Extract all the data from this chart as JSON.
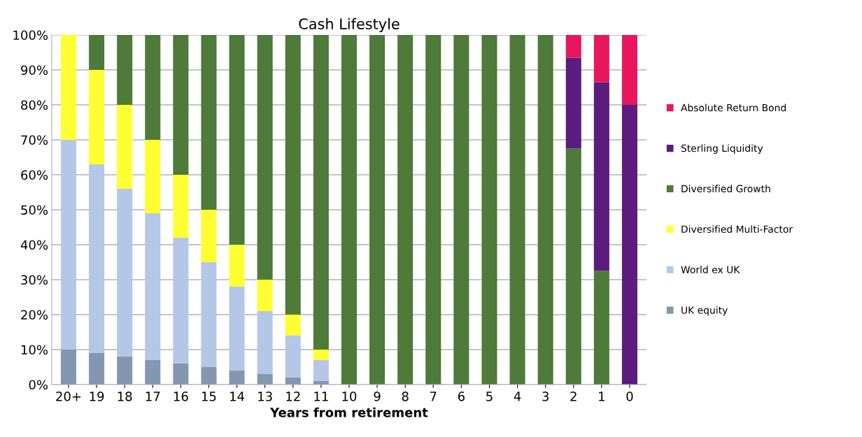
{
  "chart_data": {
    "type": "bar",
    "title": "Cash Lifestyle",
    "xlabel": "Years from retirement",
    "categories": [
      "20+",
      "19",
      "18",
      "17",
      "16",
      "15",
      "14",
      "13",
      "12",
      "11",
      "10",
      "9",
      "8",
      "7",
      "6",
      "5",
      "4",
      "3",
      "2",
      "1",
      "0"
    ],
    "stacked": true,
    "ylim": [
      0,
      100
    ],
    "yticks": [
      {
        "value": 0,
        "label": "0%"
      },
      {
        "value": 10,
        "label": "10%"
      },
      {
        "value": 20,
        "label": "20%"
      },
      {
        "value": 30,
        "label": "30%"
      },
      {
        "value": 40,
        "label": "40%"
      },
      {
        "value": 50,
        "label": "50%"
      },
      {
        "value": 60,
        "label": "60%"
      },
      {
        "value": 70,
        "label": "70%"
      },
      {
        "value": 80,
        "label": "80%"
      },
      {
        "value": 90,
        "label": "90%"
      },
      {
        "value": 100,
        "label": "100%"
      }
    ],
    "grid": "y",
    "legend": "right",
    "series": [
      {
        "name": "UK equity",
        "color": "#8497b0",
        "values": [
          10,
          9,
          8,
          7,
          6,
          5,
          4,
          3,
          2,
          1,
          0,
          0,
          0,
          0,
          0,
          0,
          0,
          0,
          0,
          0,
          0
        ]
      },
      {
        "name": "World ex UK",
        "color": "#b4c7e7",
        "values": [
          60,
          54,
          48,
          42,
          36,
          30,
          24,
          18,
          12,
          6,
          0,
          0,
          0,
          0,
          0,
          0,
          0,
          0,
          0,
          0,
          0
        ]
      },
      {
        "name": "Diversified Multi-Factor",
        "color": "#ffff33",
        "values": [
          30,
          27,
          24,
          21,
          18,
          15,
          12,
          9,
          6,
          3,
          0,
          0,
          0,
          0,
          0,
          0,
          0,
          0,
          0,
          0,
          0
        ]
      },
      {
        "name": "Diversified Growth",
        "color": "#4e7a3a",
        "values": [
          0,
          10,
          20,
          30,
          40,
          50,
          60,
          70,
          80,
          90,
          100,
          100,
          100,
          100,
          100,
          100,
          100,
          100,
          67.5,
          32.5,
          0
        ]
      },
      {
        "name": "Sterling Liquidity",
        "color": "#5b1c7e",
        "values": [
          0,
          0,
          0,
          0,
          0,
          0,
          0,
          0,
          0,
          0,
          0,
          0,
          0,
          0,
          0,
          0,
          0,
          0,
          26,
          54,
          80
        ]
      },
      {
        "name": "Absolute Return Bond",
        "color": "#e8175d",
        "values": [
          0,
          0,
          0,
          0,
          0,
          0,
          0,
          0,
          0,
          0,
          0,
          0,
          0,
          0,
          0,
          0,
          0,
          0,
          6.5,
          13.5,
          20
        ]
      }
    ]
  }
}
